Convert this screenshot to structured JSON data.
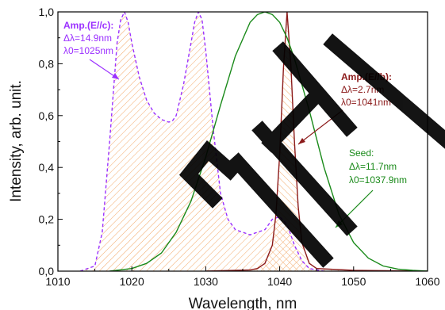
{
  "watermark": "SHTY",
  "chart_data": {
    "type": "line",
    "xlabel": "Wavelength, nm",
    "ylabel": "Intensity, arb. unit.",
    "xlim": [
      1010,
      1060
    ],
    "ylim": [
      0,
      1.0
    ],
    "x_ticks": [
      "1010",
      "1020",
      "1030",
      "1040",
      "1050",
      "1060"
    ],
    "y_ticks": [
      "0,0",
      "0,2",
      "0,4",
      "0,6",
      "0,8",
      "1,0"
    ],
    "grid": false,
    "series": [
      {
        "name": "Amp.(E//c):",
        "color": "#9b30ff",
        "dash": true,
        "hatch": "right",
        "x": [
          1013,
          1015,
          1016,
          1017,
          1018,
          1018.5,
          1019,
          1019.5,
          1020,
          1021,
          1022,
          1023,
          1024,
          1025,
          1025.5,
          1026,
          1027,
          1028,
          1028.5,
          1029,
          1029.5,
          1030,
          1031,
          1032,
          1033,
          1034,
          1035,
          1036,
          1037,
          1038,
          1039,
          1040,
          1041,
          1042,
          1043,
          1044,
          1045,
          1046
        ],
        "y": [
          0.0,
          0.02,
          0.15,
          0.5,
          0.88,
          0.97,
          1.0,
          0.96,
          0.88,
          0.75,
          0.66,
          0.61,
          0.585,
          0.575,
          0.58,
          0.6,
          0.72,
          0.88,
          0.96,
          1.0,
          0.97,
          0.85,
          0.55,
          0.3,
          0.2,
          0.16,
          0.15,
          0.14,
          0.15,
          0.16,
          0.2,
          0.21,
          0.18,
          0.1,
          0.04,
          0.01,
          0.005,
          0.0
        ]
      },
      {
        "name": "Amp.(E//b):",
        "color": "#8b1a1a",
        "dash": false,
        "hatch": "left",
        "x": [
          1030,
          1036,
          1037,
          1038,
          1039,
          1039.5,
          1040,
          1040.5,
          1041,
          1041.5,
          1042,
          1042.5,
          1043,
          1044,
          1045,
          1050,
          1060
        ],
        "y": [
          0.0,
          0.005,
          0.01,
          0.03,
          0.1,
          0.22,
          0.45,
          0.78,
          1.0,
          0.8,
          0.5,
          0.25,
          0.11,
          0.03,
          0.01,
          0.003,
          0.0
        ],
        "annotation": [
          "Amp.(E//b):",
          "Δλ=2.7nm",
          "λ0=1041nm"
        ]
      },
      {
        "name": "Seed:",
        "color": "#1a8a1a",
        "dash": false,
        "hatch": "none",
        "x": [
          1017,
          1020,
          1022,
          1024,
          1026,
          1028,
          1030,
          1032,
          1034,
          1036,
          1037,
          1038,
          1039,
          1040,
          1041,
          1042,
          1044,
          1046,
          1048,
          1050,
          1052,
          1054,
          1056,
          1058,
          1060
        ],
        "y": [
          0.0,
          0.01,
          0.03,
          0.07,
          0.15,
          0.27,
          0.44,
          0.64,
          0.83,
          0.96,
          0.99,
          1.0,
          0.99,
          0.96,
          0.9,
          0.82,
          0.62,
          0.4,
          0.22,
          0.11,
          0.05,
          0.02,
          0.008,
          0.003,
          0.0
        ],
        "annotation": [
          "Seed:",
          "Δλ=11.7nm",
          "λ0=1037.9nm"
        ]
      }
    ],
    "annotations": [
      {
        "series": "Amp.(E//c):",
        "lines": [
          "Amp.(E//c):",
          "Δλ=14.9nm",
          "λ0=1025nm"
        ]
      }
    ]
  }
}
